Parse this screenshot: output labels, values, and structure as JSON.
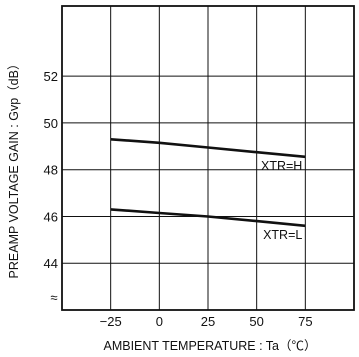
{
  "chart_data": {
    "type": "line",
    "title": "",
    "xlabel": "AMBIENT TEMPERATURE : Ta（℃）",
    "ylabel": "PREAMP VOLTAGE GAIN : Gvp（dB）",
    "xlim": [
      -50,
      100
    ],
    "ylim": [
      42,
      55
    ],
    "x_ticks": [
      -25,
      0,
      25,
      50,
      75
    ],
    "y_ticks": [
      44,
      46,
      48,
      50,
      52
    ],
    "x_tick_labels": [
      "−25",
      "0",
      "25",
      "50",
      "75"
    ],
    "y_tick_labels": [
      "44",
      "46",
      "48",
      "50",
      "52"
    ],
    "axis_break": "≈",
    "grid": true,
    "series": [
      {
        "name": "XTR=H",
        "x": [
          -25,
          0,
          25,
          50,
          75
        ],
        "y": [
          49.3,
          49.15,
          48.95,
          48.75,
          48.55
        ]
      },
      {
        "name": "XTR=L",
        "x": [
          -25,
          0,
          25,
          50,
          75
        ],
        "y": [
          46.3,
          46.15,
          46.0,
          45.8,
          45.6
        ]
      }
    ]
  }
}
